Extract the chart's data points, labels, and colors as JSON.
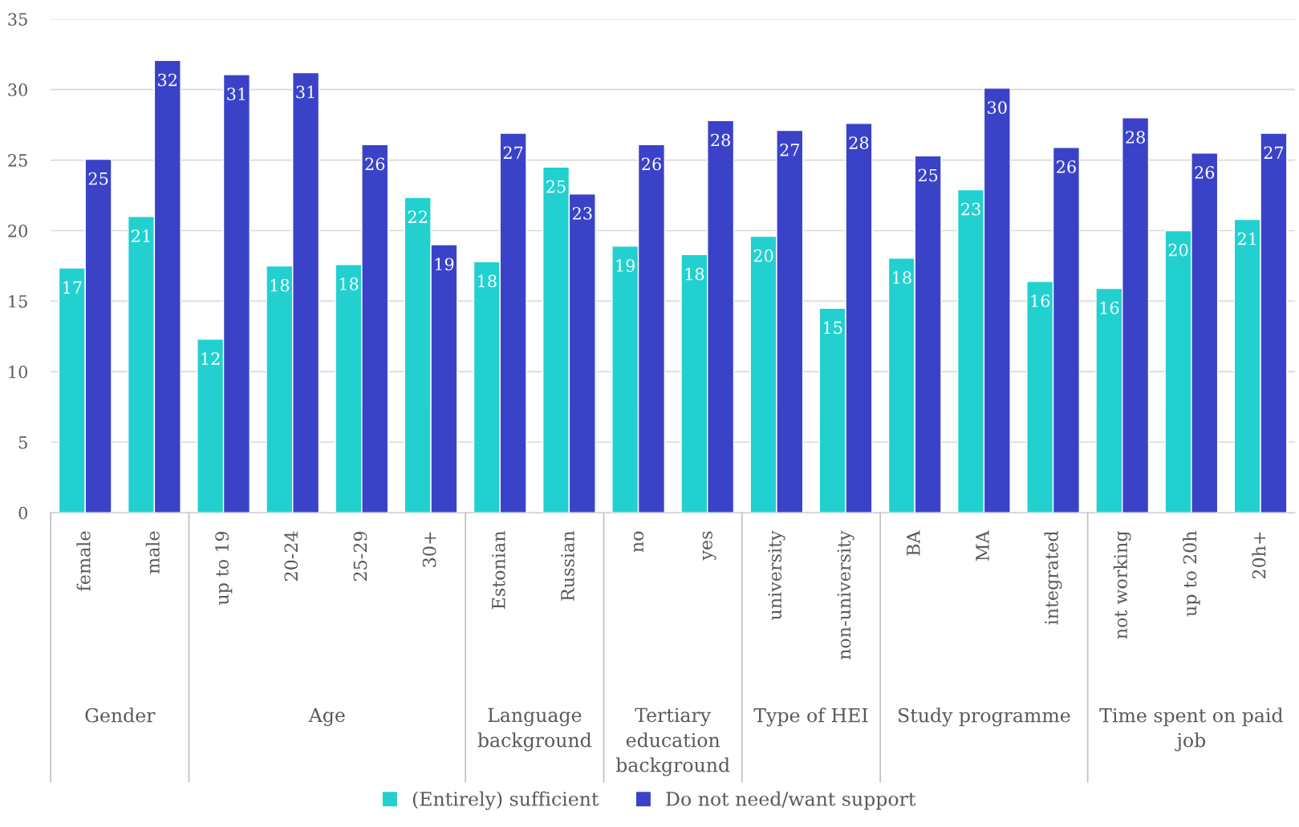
{
  "chart_data": {
    "type": "bar",
    "categories": [
      "female",
      "male",
      "up to 19",
      "20-24",
      "25-29",
      "30+",
      "Estonian",
      "Russian",
      "no",
      "yes",
      "university",
      "non-university",
      "BA",
      "MA",
      "integrated",
      "not working",
      "up to 20h",
      "20h+"
    ],
    "series": [
      {
        "name": "(Entirely) sufficient",
        "color": "#22d0d0",
        "values": [
          17.35,
          21.0,
          12.3,
          17.5,
          17.6,
          22.35,
          17.8,
          24.5,
          18.9,
          18.3,
          19.6,
          14.5,
          18.05,
          22.9,
          16.4,
          15.9,
          20.0,
          20.8
        ],
        "value_labels": [
          "17",
          "21",
          "12",
          "18",
          "18",
          "22",
          "18",
          "25",
          "19",
          "18",
          "20",
          "15",
          "18",
          "23",
          "16",
          "16",
          "20",
          "21"
        ]
      },
      {
        "name": "Do not need/want support",
        "color": "#3a42c8",
        "values": [
          25.06,
          32.06,
          31.06,
          31.2,
          26.1,
          19.0,
          26.9,
          22.6,
          26.1,
          27.8,
          27.1,
          27.6,
          25.3,
          30.1,
          25.9,
          28.0,
          25.5,
          26.9
        ],
        "value_labels": [
          "25",
          "32",
          "31",
          "31",
          "26",
          "19",
          "27",
          "23",
          "26",
          "28",
          "27",
          "28",
          "25",
          "30",
          "26",
          "28",
          "26",
          "27"
        ]
      }
    ],
    "annotations": [
      "Gender",
      "Age",
      "Language background",
      "Tertiary education background",
      "Type of HEI",
      "Study programme",
      "Time spent on paid job"
    ],
    "ylim": [
      0,
      35
    ],
    "yticks": [
      0,
      5,
      10,
      15,
      20,
      25,
      30,
      35
    ],
    "grid": "y",
    "legend": "bottom"
  }
}
